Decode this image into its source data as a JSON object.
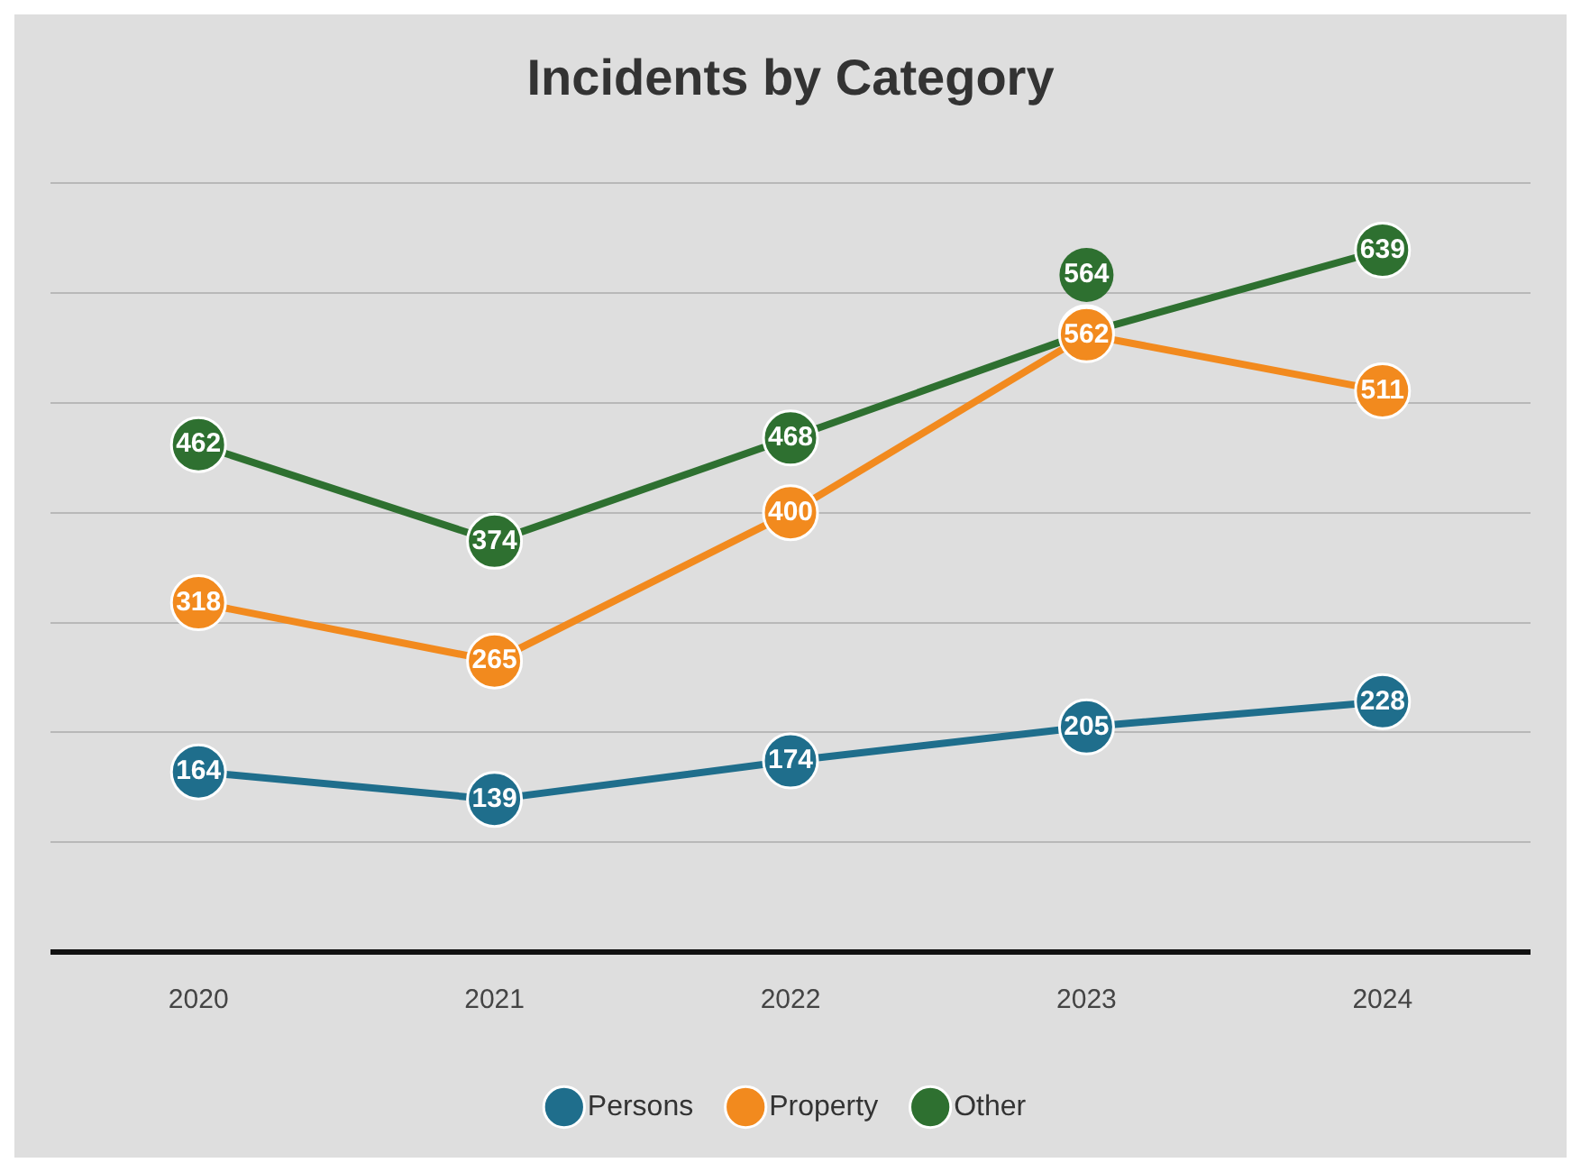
{
  "chart_data": {
    "type": "line",
    "title": "Incidents by Category",
    "categories": [
      "2020",
      "2021",
      "2022",
      "2023",
      "2024"
    ],
    "series": [
      {
        "name": "Persons",
        "color": "#1f6e8c",
        "values": [
          164,
          139,
          174,
          205,
          228
        ]
      },
      {
        "name": "Property",
        "color": "#f28a1e",
        "values": [
          318,
          265,
          400,
          562,
          511
        ]
      },
      {
        "name": "Other",
        "color": "#2e7030",
        "values": [
          462,
          374,
          468,
          564,
          639
        ]
      }
    ],
    "ylim": [
      0,
      700
    ],
    "yticks": [
      {
        "value": 0,
        "label": null
      },
      {
        "value": 100,
        "label": null
      },
      {
        "value": 200,
        "label": null
      },
      {
        "value": 300,
        "label": null
      },
      {
        "value": 400,
        "label": null
      },
      {
        "value": 500,
        "label": null
      },
      {
        "value": 600,
        "label": null
      },
      {
        "value": 700,
        "label": null
      }
    ],
    "tick_labels": "x",
    "grid": "y",
    "legend": "bottom",
    "marker": "circle",
    "line_style": "solid",
    "data_labels": true
  }
}
